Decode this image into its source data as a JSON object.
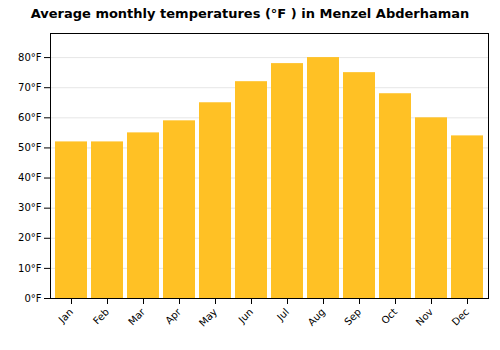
{
  "chart_data": {
    "type": "bar",
    "title": "Average monthly temperatures (°F ) in Menzel Abderhaman",
    "categories": [
      "Jan",
      "Feb",
      "Mar",
      "Apr",
      "May",
      "Jun",
      "Jul",
      "Aug",
      "Sep",
      "Oct",
      "Nov",
      "Dec"
    ],
    "values": [
      52,
      52,
      55,
      59,
      65,
      72,
      78,
      80,
      75,
      68,
      60,
      54
    ],
    "color": "#FFC125",
    "ylim": [
      0,
      88
    ],
    "yticks": [
      {
        "value": 0,
        "label": "0°F"
      },
      {
        "value": 10,
        "label": "10°F"
      },
      {
        "value": 20,
        "label": "20°F"
      },
      {
        "value": 30,
        "label": "30°F"
      },
      {
        "value": 40,
        "label": "40°F"
      },
      {
        "value": 50,
        "label": "50°F"
      },
      {
        "value": 60,
        "label": "60°F"
      },
      {
        "value": 70,
        "label": "70°F"
      },
      {
        "value": 80,
        "label": "80°F"
      }
    ],
    "grid": true
  }
}
